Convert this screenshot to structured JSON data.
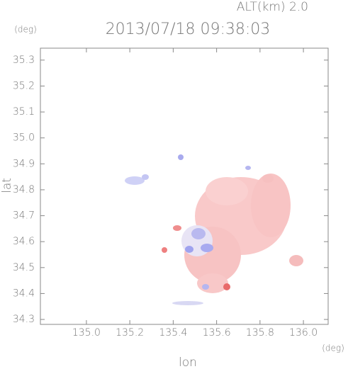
{
  "chart_data": {
    "type": "radar",
    "title": "2013/07/18 09:38:03",
    "subtitle": "ALT(km) 2.0",
    "x_label": "lon",
    "y_label": "lat",
    "x_unit": "(deg)",
    "y_unit": "(deg)",
    "xlim": [
      134.788,
      136.114
    ],
    "ylim": [
      34.281,
      35.346
    ],
    "xticks": [
      {
        "value": 135,
        "label": "135.0"
      },
      135.2,
      135.4,
      135.6,
      135.8,
      {
        "value": 136,
        "label": "136.0"
      }
    ],
    "yticks": [
      34.3,
      34.4,
      34.5,
      34.6,
      34.7,
      34.8,
      34.9,
      {
        "value": 35,
        "label": "35.0"
      },
      35.1,
      35.2,
      35.3
    ],
    "grid": false
  }
}
